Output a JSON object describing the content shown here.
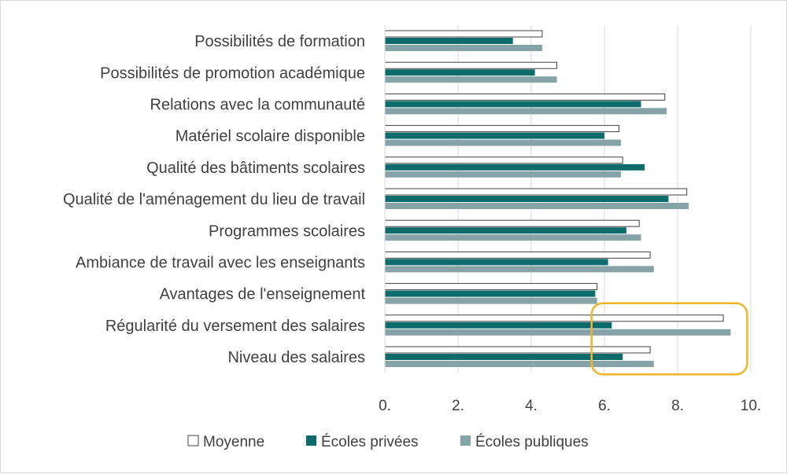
{
  "chart_data": {
    "type": "bar",
    "orientation": "horizontal",
    "categories": [
      "Possibilités de formation",
      "Possibilités de promotion académique",
      "Relations avec la communauté",
      "Matériel scolaire disponible",
      "Qualité des bâtiments scolaires",
      "Qualité de l'aménagement du lieu de travail",
      "Programmes scolaires",
      "Ambiance de travail avec les enseignants",
      "Avantages de l'enseignement",
      "Régularité du versement des salaires",
      "Niveau des salaires"
    ],
    "series": [
      {
        "name": "Moyenne",
        "color": "#ffffff",
        "stroke": "#404040",
        "values": [
          4.3,
          4.7,
          7.65,
          6.4,
          6.5,
          8.25,
          6.95,
          7.25,
          5.8,
          9.25,
          7.25
        ]
      },
      {
        "name": "Écoles privées",
        "color": "#0e6b6b",
        "stroke": "#0e6b6b",
        "values": [
          3.5,
          4.1,
          7.0,
          6.0,
          7.1,
          7.75,
          6.6,
          6.1,
          5.75,
          6.2,
          6.5
        ]
      },
      {
        "name": "Écoles publiques",
        "color": "#86a4a8",
        "stroke": "#86a4a8",
        "values": [
          4.3,
          4.7,
          7.7,
          6.45,
          6.45,
          8.3,
          7.0,
          7.35,
          5.8,
          9.45,
          7.35
        ]
      }
    ],
    "x_ticks": [
      "0.",
      "2.",
      "4.",
      "6.",
      "8.",
      "10."
    ],
    "xlim": [
      0,
      10
    ],
    "grid": "vertical",
    "legend_position": "bottom",
    "highlight_box_color": "#f0b429"
  }
}
